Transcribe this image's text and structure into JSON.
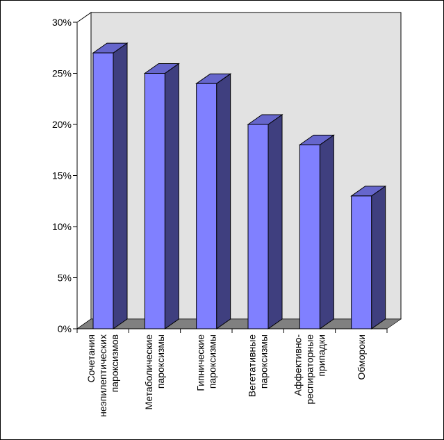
{
  "chart_data": {
    "type": "bar",
    "title": "",
    "xlabel": "",
    "ylabel": "",
    "ylim": [
      0,
      30
    ],
    "y_ticks": [
      0,
      5,
      10,
      15,
      20,
      25,
      30
    ],
    "y_tick_format": "percent",
    "grid": false,
    "legend": "none",
    "three_d": true,
    "categories": [
      [
        "Сочетания",
        "неэпилептических",
        "пароксизмов"
      ],
      [
        "Метаболические",
        "пароксизмы"
      ],
      [
        "Гипнические",
        "пароксизмы"
      ],
      [
        "Вегетативные",
        "пароксизмы"
      ],
      [
        "Аффективно-",
        "респираторные",
        "припадки"
      ],
      [
        "Обмороки"
      ]
    ],
    "values": [
      27,
      25,
      24,
      20,
      18,
      13
    ],
    "colors": {
      "bar_front": "#8080ff",
      "bar_side": "#3f3f7f",
      "bar_top": "#6666cc",
      "wall": "#e2e2e2",
      "floor": "#808080"
    }
  }
}
